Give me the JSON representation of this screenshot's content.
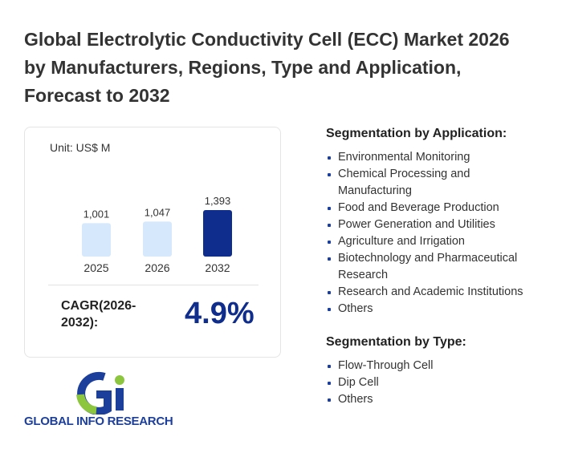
{
  "header": {
    "title": "Global Electrolytic Conductivity Cell (ECC) Market 2026 by Manufacturers, Regions, Type and Application, Forecast to 2032"
  },
  "chart_data": {
    "type": "bar",
    "unit": "Unit: US$ M",
    "categories": [
      "2025",
      "2026",
      "2032"
    ],
    "values": [
      1001,
      1047,
      1393
    ],
    "value_labels": [
      "1,001",
      "1,047",
      "1,393"
    ],
    "colors": [
      "#d6e8fb",
      "#d6e8fb",
      "#0f2d8c"
    ]
  },
  "cagr": {
    "label": "CAGR(2026-2032):",
    "value": "4.9%"
  },
  "segments": [
    {
      "heading": "Segmentation by Application:",
      "items": [
        "Environmental Monitoring",
        "Chemical Processing and Manufacturing",
        "Food and Beverage Production",
        "Power Generation and Utilities",
        "Agriculture and Irrigation",
        "Biotechnology and Pharmaceutical Research",
        "Research and Academic Institutions",
        "Others"
      ]
    },
    {
      "heading": "Segmentation by Type:",
      "items": [
        "Flow-Through Cell",
        "Dip Cell",
        "Others"
      ]
    }
  ],
  "logo": {
    "text": "GLOBAL INFO RESEARCH"
  }
}
